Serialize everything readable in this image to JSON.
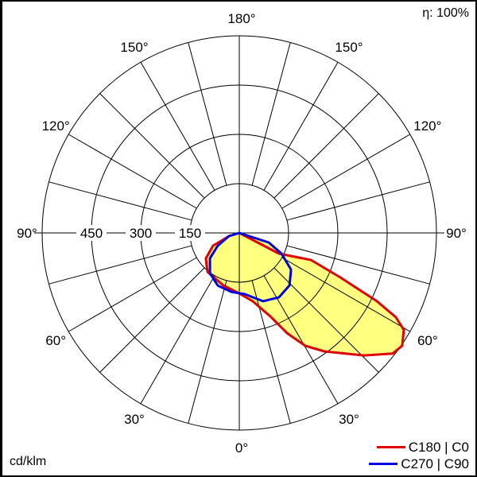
{
  "chart_data": {
    "type": "polar",
    "efficiency_label": "η: 100%",
    "unit_label": "cd/klm",
    "radial_ticks": [
      150,
      300,
      450
    ],
    "radial_max": 600,
    "angle_labels": [
      {
        "angle": 180,
        "text": "180°"
      },
      {
        "angle": 150,
        "text": "150°"
      },
      {
        "angle": -150,
        "text": "150°"
      },
      {
        "angle": 120,
        "text": "120°"
      },
      {
        "angle": -120,
        "text": "120°"
      },
      {
        "angle": 90,
        "text": "90°"
      },
      {
        "angle": -90,
        "text": "90°"
      },
      {
        "angle": 60,
        "text": "60°"
      },
      {
        "angle": -60,
        "text": "60°"
      },
      {
        "angle": 30,
        "text": "30°"
      },
      {
        "angle": -30,
        "text": "30°"
      },
      {
        "angle": 0,
        "text": "0°"
      }
    ],
    "fill_color": "#ffff80",
    "series": [
      {
        "name": "C180 | C0",
        "color": "#e00000",
        "points": [
          [
            0,
            0
          ],
          [
            62.5,
            136
          ],
          [
            69.3,
            233
          ],
          [
            66.2,
            336
          ],
          [
            63.6,
            467
          ],
          [
            61.7,
            541
          ],
          [
            59.5,
            581
          ],
          [
            55.3,
            603
          ],
          [
            51.8,
            594
          ],
          [
            45.5,
            532
          ],
          [
            35.7,
            444
          ],
          [
            30.3,
            398
          ],
          [
            25.5,
            338
          ],
          [
            20.7,
            274
          ],
          [
            11.2,
            212
          ],
          [
            0,
            184
          ],
          [
            -16.9,
            167
          ],
          [
            -39.2,
            153
          ],
          [
            -52.7,
            128
          ],
          [
            -64.1,
            89
          ],
          [
            -72.9,
            33
          ]
        ]
      },
      {
        "name": "C270 | C90",
        "color": "#0000e0",
        "points": [
          [
            0,
            0
          ],
          [
            72,
            94
          ],
          [
            63.9,
            143
          ],
          [
            54.7,
            193
          ],
          [
            43.7,
            221
          ],
          [
            31.7,
            230
          ],
          [
            19.2,
            220
          ],
          [
            5.2,
            187
          ],
          [
            -7.7,
            181
          ],
          [
            -22.2,
            173
          ],
          [
            -36,
            152
          ],
          [
            -49.1,
            118
          ],
          [
            -59.4,
            76
          ],
          [
            -73,
            33
          ]
        ]
      }
    ]
  }
}
